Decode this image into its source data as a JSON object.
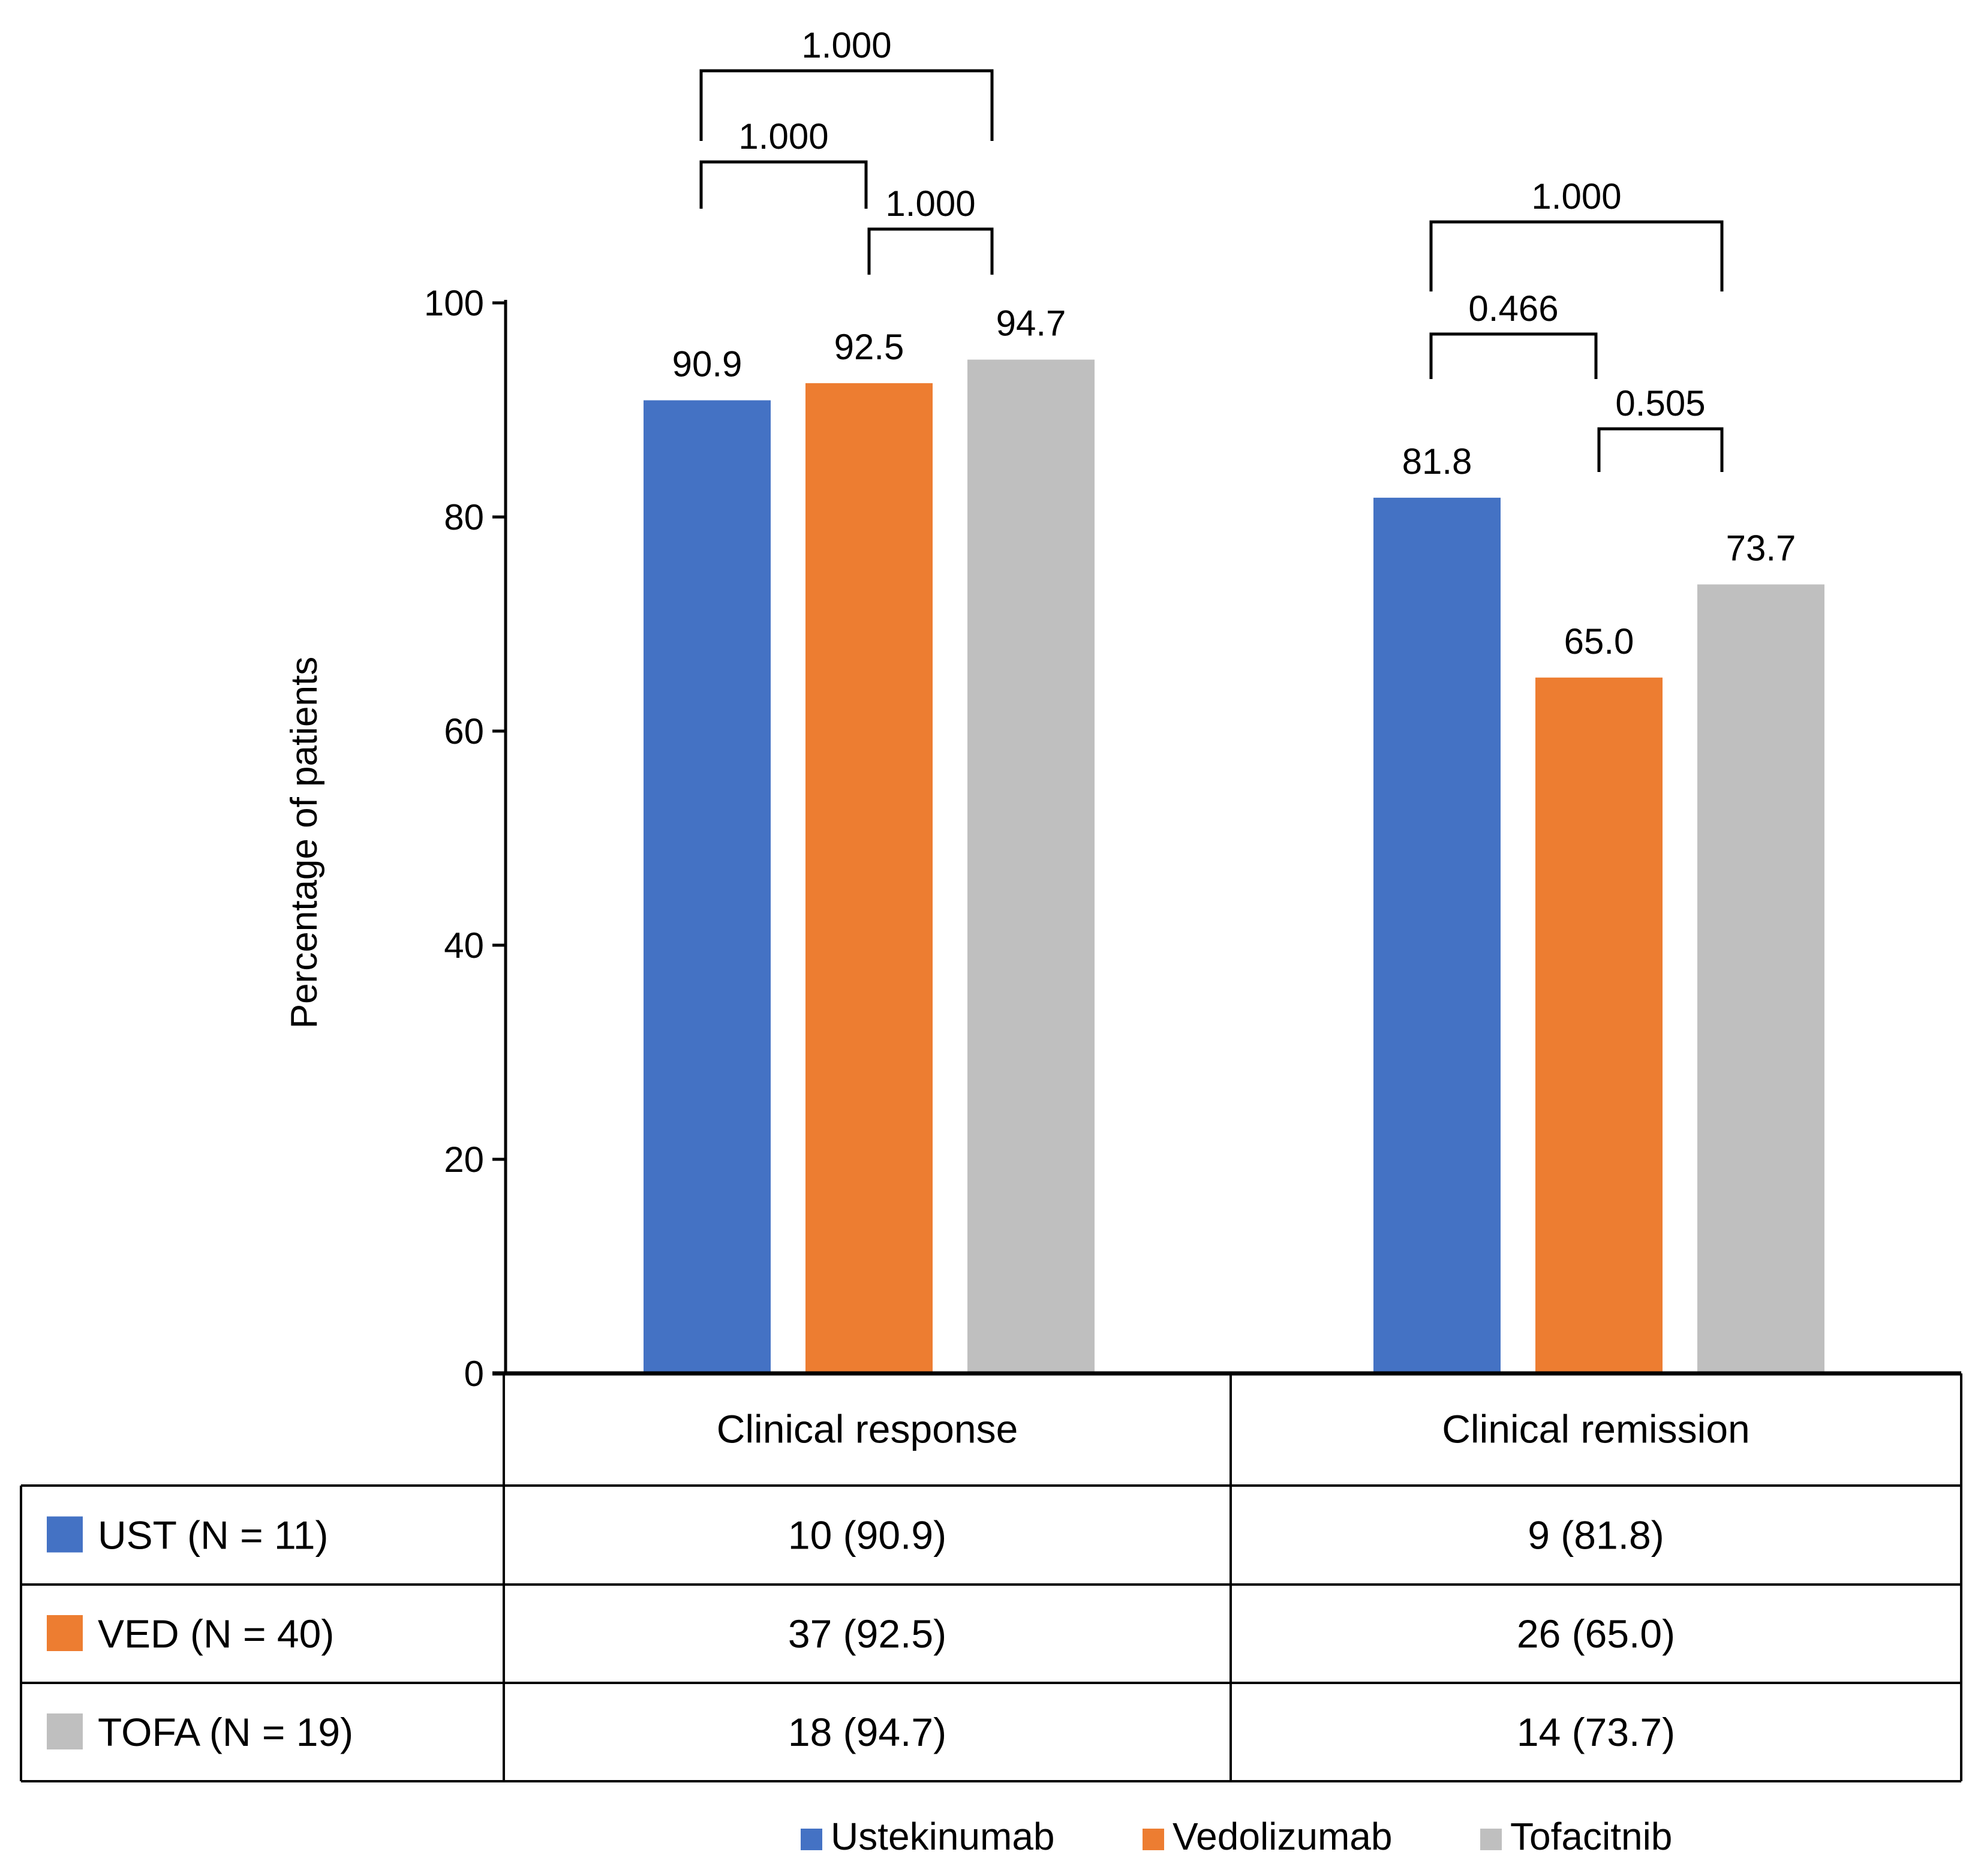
{
  "chart_data": {
    "type": "bar",
    "ylabel": "Percentage of patients",
    "xlabel": "",
    "ylim": [
      0,
      100
    ],
    "yticks": [
      "0",
      "20",
      "40",
      "60",
      "80",
      "100"
    ],
    "grid": false,
    "categories": [
      "Clinical response",
      "Clinical remission"
    ],
    "series": [
      {
        "name": "Ustekinumab",
        "color": "#4472C4",
        "values": [
          90.9,
          81.8
        ],
        "labels": [
          "90.9",
          "81.8"
        ]
      },
      {
        "name": "Vedolizumab",
        "color": "#ED7D31",
        "values": [
          92.5,
          65.0
        ],
        "labels": [
          "92.5",
          "65.0"
        ]
      },
      {
        "name": "Tofacitnib",
        "color": "#BFBFBF",
        "values": [
          94.7,
          73.7
        ],
        "labels": [
          "94.7",
          "73.7"
        ]
      }
    ],
    "comparisons": [
      {
        "category": 0,
        "from": 0,
        "to": 1,
        "p": "1.000"
      },
      {
        "category": 0,
        "from": 1,
        "to": 2,
        "p": "1.000"
      },
      {
        "category": 0,
        "from": 0,
        "to": 2,
        "p": "1.000"
      },
      {
        "category": 1,
        "from": 0,
        "to": 1,
        "p": "0.466"
      },
      {
        "category": 1,
        "from": 1,
        "to": 2,
        "p": "0.505"
      },
      {
        "category": 1,
        "from": 0,
        "to": 2,
        "p": "1.000"
      }
    ],
    "table": {
      "rows": [
        {
          "label": "UST (N = 11)",
          "color": "#4472C4",
          "cells": [
            "10 (90.9)",
            "9 (81.8)"
          ]
        },
        {
          "label": "VED (N = 40)",
          "color": "#ED7D31",
          "cells": [
            "37 (92.5)",
            "26 (65.0)"
          ]
        },
        {
          "label": "TOFA (N = 19)",
          "color": "#BFBFBF",
          "cells": [
            "18 (94.7)",
            "14 (73.7)"
          ]
        }
      ]
    },
    "legend_position": "bottom-center"
  }
}
